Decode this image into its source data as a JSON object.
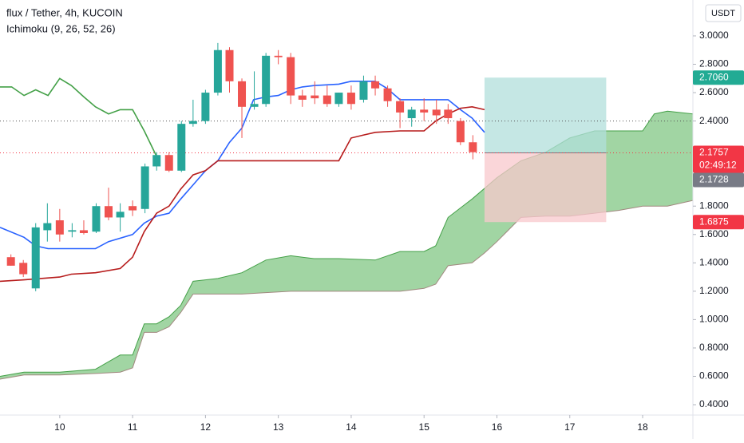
{
  "chart_data": {
    "type": "candlestick",
    "title": "flux / Tether, 4h, KUCOIN",
    "subtitle": "Ichimoku (9, 26, 52, 26)",
    "currency_button": "USDT",
    "xlim": [
      9.18,
      18.69
    ],
    "ylim": [
      0.327,
      3.253
    ],
    "xticks": [
      10,
      11,
      12,
      13,
      14,
      15,
      16,
      17,
      18
    ],
    "yticks": [
      {
        "value": 0.4,
        "label": "0.4000"
      },
      {
        "value": 0.6,
        "label": "0.6000"
      },
      {
        "value": 0.8,
        "label": "0.8000"
      },
      {
        "value": 1.0,
        "label": "1.0000"
      },
      {
        "value": 1.2,
        "label": "1.2000"
      },
      {
        "value": 1.4,
        "label": "1.4000"
      },
      {
        "value": 1.6,
        "label": "1.6000"
      },
      {
        "value": 1.8,
        "label": "1.8000"
      },
      {
        "value": 2.4,
        "label": "2.4000"
      },
      {
        "value": 2.6,
        "label": "2.6000"
      },
      {
        "value": 2.8,
        "label": "2.8000"
      },
      {
        "value": 3.0,
        "label": "3.0000"
      }
    ],
    "up_color": "#26a69a",
    "down_color": "#ef5350",
    "candles": {
      "x": [
        9.33,
        9.5,
        9.67,
        9.83,
        10,
        10.17,
        10.33,
        10.5,
        10.67,
        10.83,
        11,
        11.17,
        11.33,
        11.5,
        11.67,
        11.83,
        12,
        12.17,
        12.33,
        12.5,
        12.67,
        12.83,
        13,
        13.17,
        13.33,
        13.5,
        13.67,
        13.83,
        14,
        14.17,
        14.33,
        14.5,
        14.67,
        14.83,
        15,
        15.17,
        15.33,
        15.5,
        15.67
      ],
      "open": [
        1.44,
        1.4,
        1.22,
        1.63,
        1.7,
        1.62,
        1.63,
        1.62,
        1.8,
        1.72,
        1.8,
        1.78,
        2.08,
        2.16,
        2.05,
        2.38,
        2.4,
        2.6,
        2.9,
        2.68,
        2.5,
        2.52,
        2.86,
        2.85,
        2.58,
        2.58,
        2.58,
        2.52,
        2.6,
        2.55,
        2.68,
        2.63,
        2.54,
        2.42,
        2.48,
        2.48,
        2.48,
        2.4,
        2.25
      ],
      "high": [
        1.46,
        1.42,
        1.68,
        1.82,
        1.78,
        1.68,
        1.7,
        1.82,
        1.93,
        1.82,
        1.84,
        2.1,
        2.18,
        2.18,
        2.4,
        2.55,
        2.62,
        2.95,
        2.92,
        2.7,
        2.75,
        2.88,
        2.9,
        2.88,
        2.62,
        2.68,
        2.65,
        2.6,
        2.65,
        2.72,
        2.72,
        2.65,
        2.56,
        2.5,
        2.56,
        2.55,
        2.52,
        2.42,
        2.3
      ],
      "low": [
        1.38,
        1.3,
        1.2,
        1.55,
        1.55,
        1.58,
        1.6,
        1.61,
        1.7,
        1.62,
        1.73,
        1.75,
        2.05,
        2.04,
        2.04,
        2.36,
        2.38,
        2.58,
        2.6,
        2.28,
        2.48,
        2.5,
        2.8,
        2.52,
        2.5,
        2.52,
        2.5,
        2.5,
        2.48,
        2.53,
        2.58,
        2.5,
        2.35,
        2.36,
        2.4,
        2.38,
        2.38,
        2.23,
        2.13
      ],
      "close": [
        1.38,
        1.32,
        1.65,
        1.68,
        1.6,
        1.63,
        1.61,
        1.8,
        1.72,
        1.76,
        1.77,
        2.08,
        2.16,
        2.05,
        2.38,
        2.4,
        2.6,
        2.9,
        2.68,
        2.5,
        2.52,
        2.86,
        2.85,
        2.58,
        2.55,
        2.56,
        2.52,
        2.6,
        2.52,
        2.68,
        2.63,
        2.54,
        2.46,
        2.48,
        2.46,
        2.44,
        2.42,
        2.25,
        2.18
      ]
    },
    "cloud": {
      "color": "#81c784",
      "series": [
        {
          "color": "#43a047",
          "x": [
            9.18,
            9.51,
            10,
            10.49,
            10.83,
            11,
            11.16,
            11.33,
            11.5,
            11.66,
            11.83,
            12.17,
            12.5,
            12.83,
            13.17,
            13.49,
            13.83,
            14.33,
            14.67,
            15,
            15.16,
            15.33,
            15.66,
            16,
            16.33,
            16.67,
            17,
            17.34,
            17.67,
            18,
            18.16,
            18.34,
            18.69
          ],
          "values": [
            0.6,
            0.63,
            0.63,
            0.65,
            0.75,
            0.75,
            0.97,
            0.97,
            1.02,
            1.1,
            1.27,
            1.29,
            1.33,
            1.42,
            1.45,
            1.43,
            1.43,
            1.42,
            1.48,
            1.48,
            1.52,
            1.72,
            1.85,
            2.0,
            2.12,
            2.18,
            2.28,
            2.33,
            2.33,
            2.33,
            2.45,
            2.47,
            2.45
          ]
        },
        {
          "color": "#a1887f",
          "x": [
            9.18,
            9.51,
            10,
            10.49,
            10.83,
            11,
            11.16,
            11.33,
            11.5,
            11.66,
            11.83,
            12.5,
            12.83,
            13.17,
            14.67,
            15,
            15.16,
            15.33,
            15.66,
            15.83,
            16,
            16.33,
            16.67,
            17,
            17.34,
            17.67,
            18,
            18.34,
            18.69
          ],
          "values": [
            0.58,
            0.61,
            0.61,
            0.62,
            0.63,
            0.66,
            0.91,
            0.91,
            0.95,
            1.05,
            1.18,
            1.18,
            1.19,
            1.2,
            1.2,
            1.22,
            1.25,
            1.38,
            1.4,
            1.47,
            1.55,
            1.72,
            1.73,
            1.73,
            1.75,
            1.77,
            1.8,
            1.8,
            1.84
          ]
        }
      ]
    },
    "lines": [
      {
        "color": "#2962ff",
        "x": [
          9.18,
          9.51,
          9.67,
          9.84,
          10.49,
          10.67,
          11,
          11.16,
          11.33,
          11.5,
          11.66,
          11.83,
          12,
          12.17,
          12.33,
          12.5,
          12.66,
          12.83,
          13,
          13.17,
          13.33,
          13.49,
          13.83,
          14,
          14.33,
          14.49,
          14.67,
          15.33,
          15.5,
          15.66,
          15.83
        ],
        "values": [
          1.65,
          1.58,
          1.52,
          1.5,
          1.5,
          1.55,
          1.6,
          1.68,
          1.73,
          1.75,
          1.85,
          1.95,
          2.05,
          2.12,
          2.25,
          2.35,
          2.55,
          2.57,
          2.58,
          2.62,
          2.64,
          2.65,
          2.66,
          2.68,
          2.68,
          2.63,
          2.55,
          2.55,
          2.48,
          2.42,
          2.32
        ]
      },
      {
        "color": "#b71c1c",
        "x": [
          9.18,
          9.51,
          10,
          10.16,
          10.49,
          10.83,
          11,
          11.16,
          11.33,
          11.5,
          11.66,
          11.83,
          12,
          12.17,
          13.83,
          14,
          14.16,
          14.33,
          14.67,
          15,
          15.16,
          15.33,
          15.5,
          15.66,
          15.83
        ],
        "values": [
          1.27,
          1.28,
          1.3,
          1.32,
          1.33,
          1.36,
          1.44,
          1.62,
          1.75,
          1.8,
          1.92,
          2.02,
          2.05,
          2.12,
          2.12,
          2.28,
          2.3,
          2.32,
          2.33,
          2.33,
          2.4,
          2.45,
          2.49,
          2.5,
          2.48
        ]
      },
      {
        "color": "#43a047",
        "x": [
          9.18,
          9.34,
          9.51,
          9.67,
          9.84,
          10,
          10.16,
          10.33,
          10.49,
          10.67,
          10.83,
          11,
          11.16,
          11.33
        ],
        "values": [
          2.64,
          2.64,
          2.58,
          2.62,
          2.58,
          2.7,
          2.65,
          2.57,
          2.5,
          2.45,
          2.48,
          2.48,
          2.33,
          2.15
        ]
      }
    ],
    "position": {
      "x": [
        15.83,
        17.5
      ],
      "target": 2.706,
      "entry": 2.1757,
      "stop": 1.6875,
      "target_color": "#b2dfdb",
      "stop_color": "#f8c8cc"
    },
    "reference_line": {
      "value": 2.4,
      "color": "#555555"
    },
    "price_labels": [
      {
        "value": 2.706,
        "label": "2.7060",
        "color": "#22ab94"
      },
      {
        "value": 2.1757,
        "label": "2.1757",
        "color": "#f23645"
      },
      {
        "value": 2.1728,
        "label": "2.1728",
        "color": "#787b86"
      },
      {
        "value": 1.6875,
        "label": "1.6875",
        "color": "#f23645"
      }
    ],
    "countdown": "02:49:12"
  }
}
